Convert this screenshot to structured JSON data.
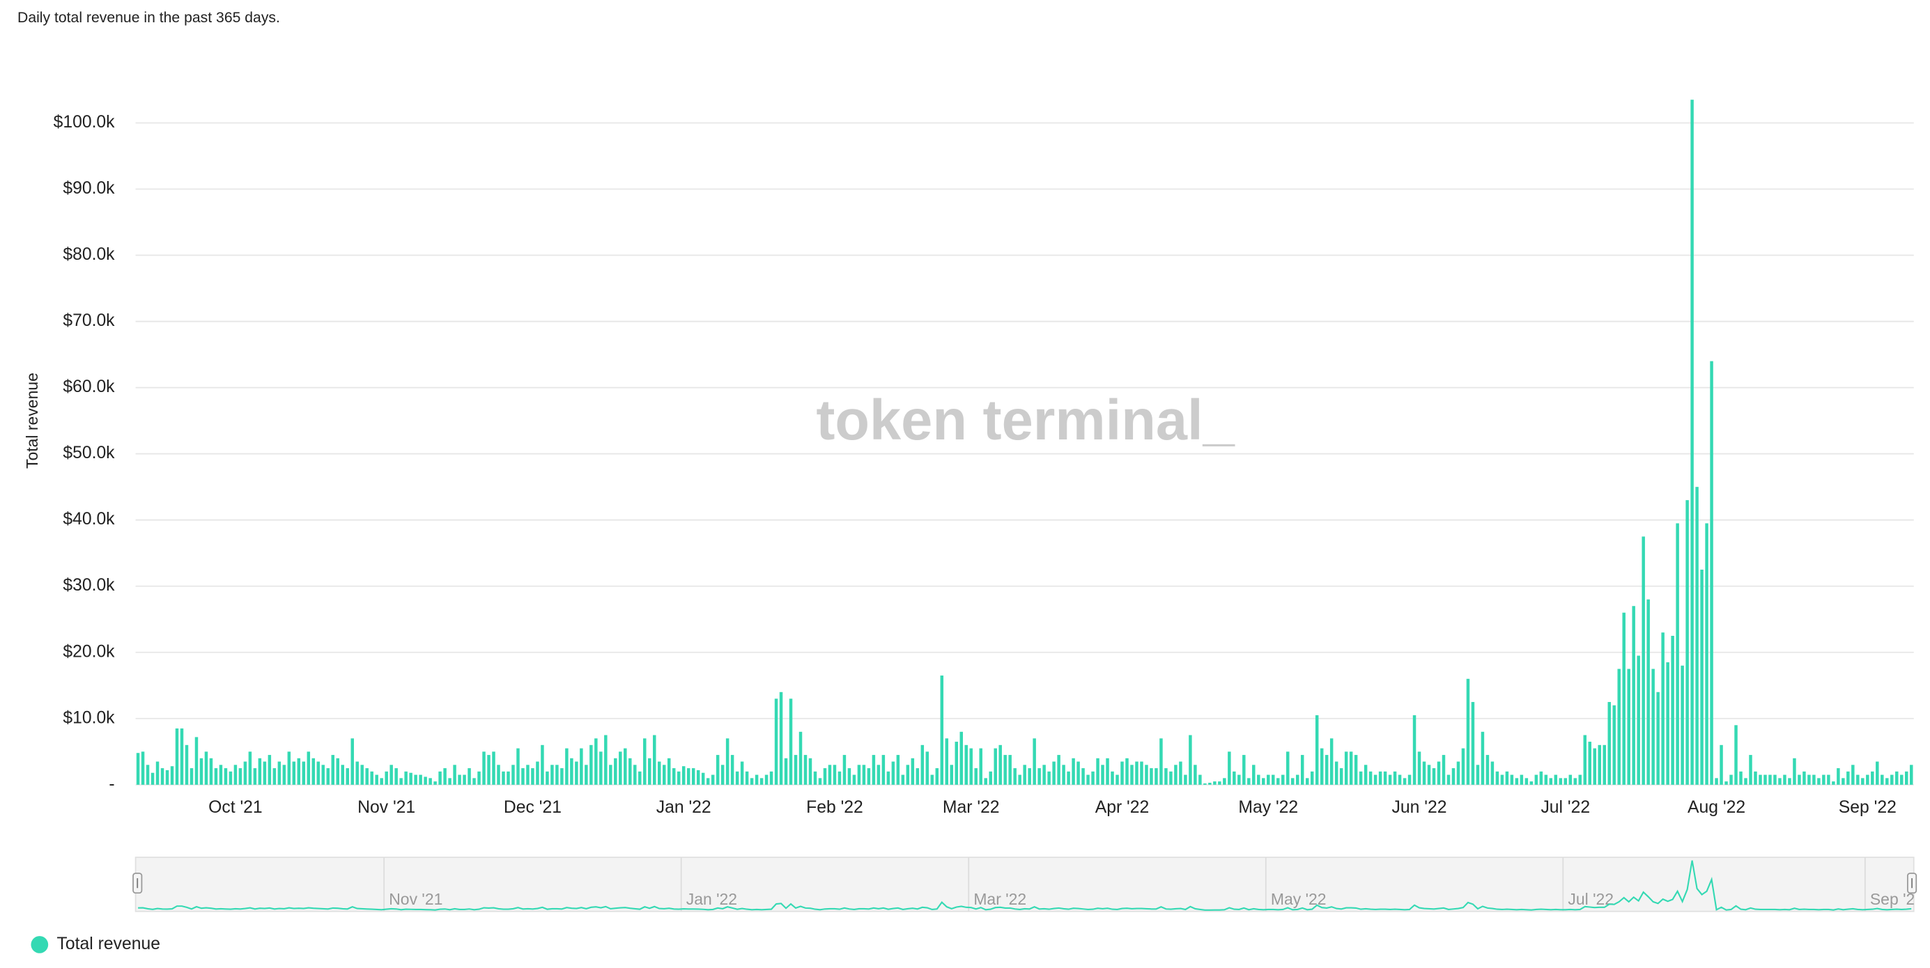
{
  "chart_data": {
    "type": "bar",
    "subtitle": "Daily total revenue in the past 365 days.",
    "y_label": "Total revenue",
    "watermark": "token terminal_",
    "categories": [
      null,
      null,
      null,
      null,
      null,
      null,
      null,
      null,
      null,
      null,
      null,
      null,
      null,
      null,
      null,
      null,
      null,
      null,
      null,
      null,
      "Oct '21",
      null,
      null,
      null,
      null,
      null,
      null,
      null,
      null,
      null,
      null,
      null,
      null,
      null,
      null,
      null,
      null,
      null,
      null,
      null,
      null,
      null,
      null,
      null,
      null,
      null,
      null,
      null,
      null,
      null,
      null,
      "Nov '21",
      null,
      null,
      null,
      null,
      null,
      null,
      null,
      null,
      null,
      null,
      null,
      null,
      null,
      null,
      null,
      null,
      null,
      null,
      null,
      null,
      null,
      null,
      null,
      null,
      null,
      null,
      null,
      null,
      null,
      "Dec '21",
      null,
      null,
      null,
      null,
      null,
      null,
      null,
      null,
      null,
      null,
      null,
      null,
      null,
      null,
      null,
      null,
      null,
      null,
      null,
      null,
      null,
      null,
      null,
      null,
      null,
      null,
      null,
      null,
      null,
      null,
      "Jan '22",
      null,
      null,
      null,
      null,
      null,
      null,
      null,
      null,
      null,
      null,
      null,
      null,
      null,
      null,
      null,
      null,
      null,
      null,
      null,
      null,
      null,
      null,
      null,
      null,
      null,
      null,
      null,
      null,
      null,
      null,
      "Feb '22",
      null,
      null,
      null,
      null,
      null,
      null,
      null,
      null,
      null,
      null,
      null,
      null,
      null,
      null,
      null,
      null,
      null,
      null,
      null,
      null,
      null,
      null,
      null,
      null,
      null,
      null,
      null,
      "Mar '22",
      null,
      null,
      null,
      null,
      null,
      null,
      null,
      null,
      null,
      null,
      null,
      null,
      null,
      null,
      null,
      null,
      null,
      null,
      null,
      null,
      null,
      null,
      null,
      null,
      null,
      null,
      null,
      null,
      null,
      null,
      "Apr '22",
      null,
      null,
      null,
      null,
      null,
      null,
      null,
      null,
      null,
      null,
      null,
      null,
      null,
      null,
      null,
      null,
      null,
      null,
      null,
      null,
      null,
      null,
      null,
      null,
      null,
      null,
      null,
      null,
      null,
      "May '22",
      null,
      null,
      null,
      null,
      null,
      null,
      null,
      null,
      null,
      null,
      null,
      null,
      null,
      null,
      null,
      null,
      null,
      null,
      null,
      null,
      null,
      null,
      null,
      null,
      null,
      null,
      null,
      null,
      null,
      null,
      "Jun '22",
      null,
      null,
      null,
      null,
      null,
      null,
      null,
      null,
      null,
      null,
      null,
      null,
      null,
      null,
      null,
      null,
      null,
      null,
      null,
      null,
      null,
      null,
      null,
      null,
      null,
      null,
      null,
      null,
      null,
      "Jul '22",
      null,
      null,
      null,
      null,
      null,
      null,
      null,
      null,
      null,
      null,
      null,
      null,
      null,
      null,
      null,
      null,
      null,
      null,
      null,
      null,
      null,
      null,
      null,
      null,
      null,
      null,
      null,
      null,
      null,
      null,
      "Aug '22",
      null,
      null,
      null,
      null,
      null,
      null,
      null,
      null,
      null,
      null,
      null,
      null,
      null,
      null,
      null,
      null,
      null,
      null,
      null,
      null,
      null,
      null,
      null,
      null,
      null,
      null,
      null,
      null,
      null,
      null,
      "Sep '22",
      null,
      null,
      null,
      null,
      null,
      null,
      null,
      null,
      null
    ],
    "series": [
      {
        "name": "Total revenue",
        "color": "#34d9b3",
        "values": [
          4800,
          5000,
          3000,
          1800,
          3500,
          2500,
          2200,
          2800,
          8500,
          8500,
          6000,
          2500,
          7200,
          4000,
          5000,
          4000,
          2500,
          3000,
          2500,
          2000,
          3000,
          2500,
          3500,
          5000,
          2500,
          4000,
          3500,
          4500,
          2500,
          3500,
          3000,
          5000,
          3500,
          4000,
          3500,
          5000,
          4000,
          3500,
          3000,
          2500,
          4500,
          4000,
          3000,
          2500,
          7000,
          3500,
          3000,
          2500,
          2000,
          1500,
          1000,
          2000,
          3000,
          2500,
          1000,
          2000,
          1800,
          1500,
          1500,
          1200,
          1000,
          500,
          2000,
          2500,
          1000,
          3000,
          1500,
          1500,
          2500,
          1000,
          2000,
          5000,
          4500,
          5000,
          3000,
          2000,
          2000,
          3000,
          5500,
          2500,
          3000,
          2500,
          3500,
          6000,
          2000,
          3000,
          3000,
          2500,
          5500,
          4000,
          3500,
          5500,
          3000,
          6000,
          7000,
          5000,
          7500,
          3000,
          4000,
          5000,
          5500,
          4000,
          3000,
          2000,
          7000,
          4000,
          7500,
          3500,
          3000,
          4000,
          2500,
          2000,
          2800,
          2500,
          2500,
          2200,
          1800,
          1000,
          1500,
          4500,
          3000,
          7000,
          4500,
          2000,
          3500,
          2000,
          1000,
          1500,
          1000,
          1500,
          2000,
          13000,
          14000,
          4000,
          13000,
          4500,
          8000,
          4500,
          4000,
          2000,
          1000,
          2500,
          3000,
          3000,
          2000,
          4500,
          2500,
          1500,
          3000,
          3000,
          2500,
          4500,
          3000,
          4500,
          2000,
          3500,
          4500,
          1500,
          3000,
          4000,
          2500,
          6000,
          5000,
          1500,
          2500,
          16500,
          7000,
          3000,
          6500,
          8000,
          6000,
          5500,
          2500,
          5500,
          1000,
          2000,
          5500,
          6000,
          4500,
          4500,
          2500,
          1500,
          3000,
          2500,
          7000,
          2500,
          3000,
          2000,
          3500,
          4500,
          3000,
          2000,
          4000,
          3500,
          2500,
          1500,
          2000,
          4000,
          3000,
          4000,
          2000,
          1500,
          3500,
          4000,
          3000,
          3500,
          3500,
          3000,
          2500,
          2500,
          7000,
          2500,
          2000,
          3000,
          3500,
          1500,
          7500,
          3000,
          1500,
          200,
          300,
          500,
          500,
          1000,
          5000,
          2000,
          1500,
          4500,
          1000,
          3000,
          1500,
          1000,
          1500,
          1500,
          1000,
          1500,
          5000,
          1000,
          1500,
          4500,
          1000,
          2000,
          10500,
          5500,
          4500,
          7000,
          3500,
          2500,
          5000,
          5000,
          4500,
          2000,
          3000,
          2000,
          1500,
          2000,
          2000,
          1500,
          2000,
          1500,
          1000,
          1500,
          10500,
          5000,
          3500,
          3000,
          2500,
          3500,
          4500,
          1500,
          2500,
          3500,
          5500,
          16000,
          12500,
          3000,
          8000,
          4500,
          3500,
          2000,
          1500,
          2000,
          1500,
          1000,
          1500,
          1000,
          500,
          1500,
          2000,
          1500,
          1000,
          1500,
          1000,
          1000,
          1500,
          1000,
          1500,
          7500,
          6500,
          5500,
          6000,
          6000,
          12500,
          12000,
          17500,
          26000,
          17500,
          27000,
          19500,
          37500,
          28000,
          17500,
          14000,
          23000,
          18500,
          22500,
          39500,
          18000,
          43000,
          103500,
          45000,
          32500,
          39500,
          64000,
          1000,
          6000,
          500,
          1500,
          9000,
          2000,
          1000,
          4500,
          2000,
          1500,
          1500,
          1500,
          1500,
          1000,
          1500,
          1000,
          4000,
          1500,
          2000,
          1500,
          1500,
          1000,
          1500,
          1500,
          500,
          2500,
          1000,
          2000,
          3000,
          1500,
          1000,
          1500,
          2000,
          3500,
          1500,
          1000,
          1500,
          2000,
          1500,
          2000,
          3000
        ]
      }
    ],
    "ylim": [
      0,
      105000
    ],
    "yticks": [
      {
        "value": 0,
        "label": "-"
      },
      {
        "value": 10000,
        "label": "$10.0k"
      },
      {
        "value": 20000,
        "label": "$20.0k"
      },
      {
        "value": 30000,
        "label": "$30.0k"
      },
      {
        "value": 40000,
        "label": "$40.0k"
      },
      {
        "value": 50000,
        "label": "$50.0k"
      },
      {
        "value": 60000,
        "label": "$60.0k"
      },
      {
        "value": 70000,
        "label": "$70.0k"
      },
      {
        "value": 80000,
        "label": "$80.0k"
      },
      {
        "value": 90000,
        "label": "$90.0k"
      },
      {
        "value": 100000,
        "label": "$100.0k"
      }
    ],
    "grid": true,
    "legend": "bottom-left"
  }
}
